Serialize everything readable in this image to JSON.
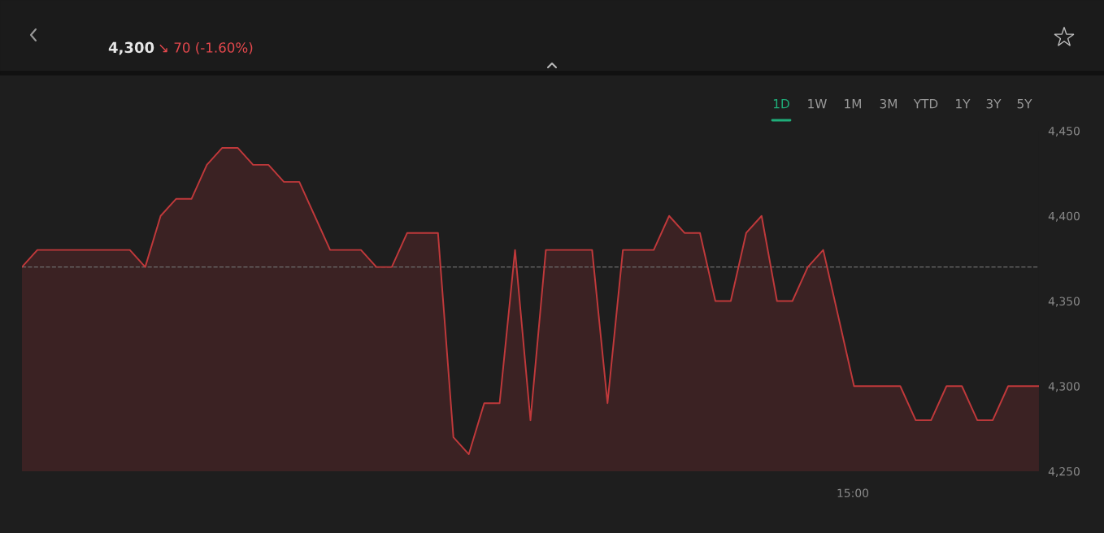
{
  "chart_data": {
    "type": "area",
    "categories": [
      null,
      null,
      null,
      null,
      null,
      null,
      null,
      null,
      null,
      null,
      null,
      null,
      null,
      null,
      null,
      null,
      null,
      null,
      null,
      null,
      null,
      null,
      null,
      null,
      null,
      null,
      null,
      null,
      null,
      null,
      null,
      null,
      null,
      null,
      null,
      null,
      null,
      null,
      null,
      null,
      null,
      null,
      null,
      null,
      null,
      null,
      null,
      null,
      null,
      null,
      null,
      null,
      null,
      null,
      null,
      null,
      null,
      null,
      null,
      null,
      null,
      null,
      null,
      null,
      null,
      null,
      null
    ],
    "series": [
      {
        "color": "#c0393b",
        "values": [
          4370,
          4380,
          4380,
          4380,
          4380,
          4380,
          4380,
          4380,
          4370,
          4400,
          4410,
          4410,
          4430,
          4440,
          4440,
          4430,
          4430,
          4420,
          4420,
          4400,
          4380,
          4380,
          4380,
          4370,
          4370,
          4390,
          4390,
          4390,
          4270,
          4260,
          4290,
          4290,
          4380,
          4280,
          4380,
          4380,
          4380,
          4380,
          4290,
          4380,
          4380,
          4380,
          4400,
          4390,
          4390,
          4350,
          4350,
          4390,
          4400,
          4350,
          4350,
          4370,
          4380,
          4340,
          4300,
          4300,
          4300,
          4300,
          4280,
          4280,
          4300,
          4300,
          4280,
          4280,
          4300,
          4300,
          4300
        ]
      }
    ],
    "ylim": [
      4250,
      4450
    ],
    "yticks": [
      {
        "value": 4250,
        "label": "4,250"
      },
      {
        "value": 4300,
        "label": "4,300"
      },
      {
        "value": 4350,
        "label": "4,350"
      },
      {
        "value": 4400,
        "label": "4,400"
      },
      {
        "value": 4450,
        "label": "4,450"
      }
    ],
    "ref_lines": [
      {
        "axis": "y",
        "value": 4370,
        "color": "#6e6e6e",
        "line_style": "dashed"
      }
    ],
    "annotations": [
      "4,300",
      "↘ 70 (-1.60%)",
      "1D",
      "1W",
      "1M",
      "3M",
      "YTD",
      "1Y",
      "3Y",
      "5Y",
      "15:00"
    ],
    "grid": false,
    "legend": false
  }
}
